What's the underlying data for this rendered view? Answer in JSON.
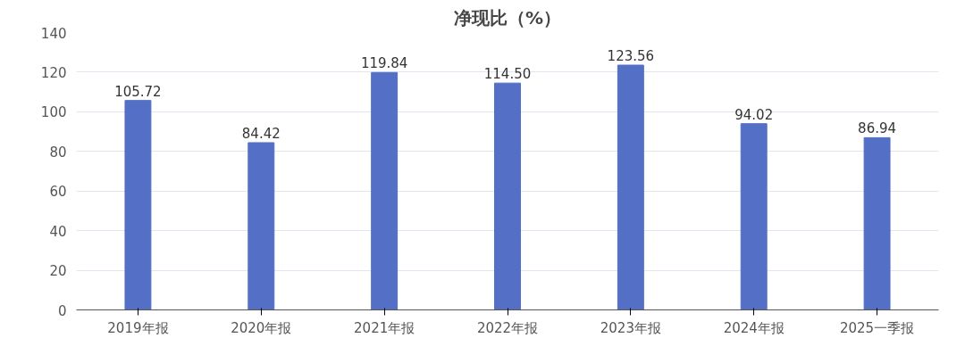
{
  "chart_data": {
    "type": "bar",
    "title": "净现比（%）",
    "categories": [
      "2019年报",
      "2020年报",
      "2021年报",
      "2022年报",
      "2023年报",
      "2024年报",
      "2025一季报"
    ],
    "values": [
      105.72,
      84.42,
      119.84,
      114.5,
      123.56,
      94.02,
      86.94
    ],
    "value_labels": [
      "105.72",
      "84.42",
      "119.84",
      "114.50",
      "123.56",
      "94.02",
      "86.94"
    ],
    "color": "#5470c6",
    "ylim": [
      0,
      140
    ],
    "yticks": [
      0,
      20,
      40,
      60,
      80,
      100,
      120,
      140
    ],
    "grid": "y"
  }
}
